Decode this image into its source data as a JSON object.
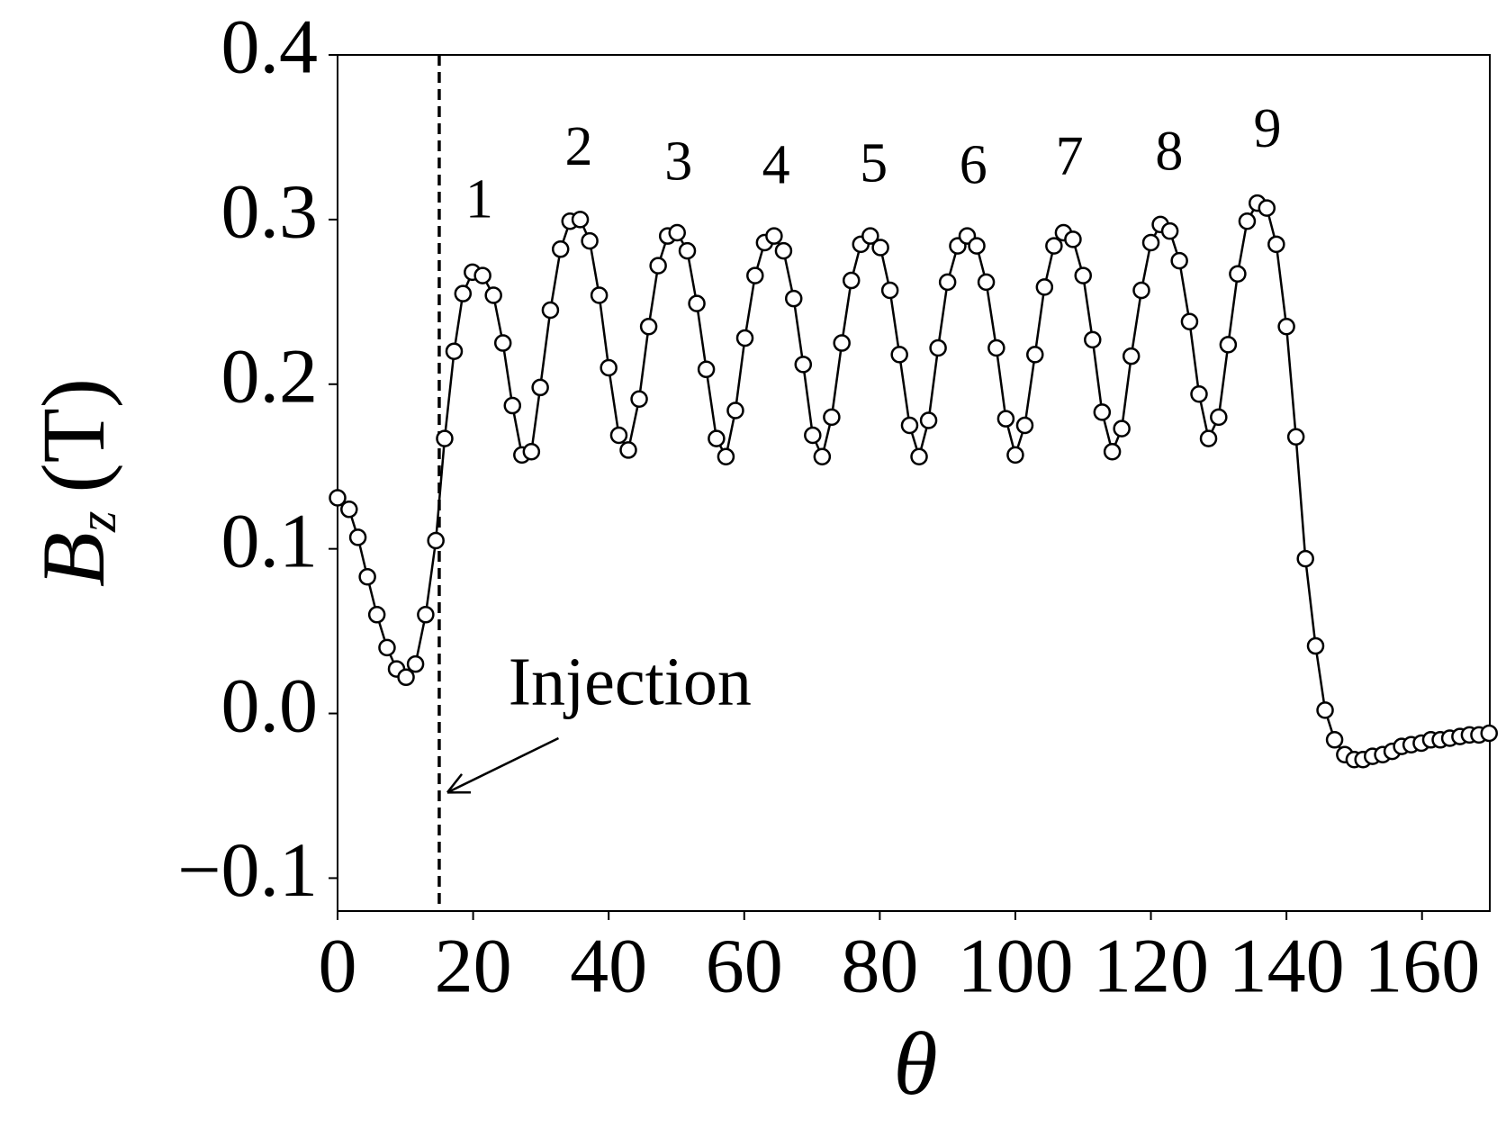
{
  "chart_data": {
    "type": "line",
    "xlabel": "θ",
    "ylabel": {
      "symbol": "B",
      "subscript": "z",
      "unit": "(T)"
    },
    "x": [
      0,
      1.7,
      3.0,
      4.4,
      5.8,
      7.3,
      8.7,
      10.1,
      11.5,
      13.0,
      14.5,
      15.8,
      17.2,
      18.5,
      19.9,
      21.4,
      23.0,
      24.4,
      25.8,
      27.2,
      28.6,
      29.9,
      31.4,
      32.9,
      34.3,
      35.8,
      37.2,
      38.6,
      40.0,
      41.5,
      42.9,
      44.5,
      45.9,
      47.3,
      48.7,
      50.1,
      51.6,
      53.0,
      54.4,
      55.9,
      57.3,
      58.7,
      60.1,
      61.6,
      63.0,
      64.4,
      65.8,
      67.3,
      68.7,
      70.1,
      71.5,
      72.9,
      74.4,
      75.8,
      77.2,
      78.6,
      80.1,
      81.5,
      82.9,
      84.4,
      85.8,
      87.2,
      88.6,
      90.0,
      91.5,
      92.9,
      94.3,
      95.7,
      97.2,
      98.6,
      100.0,
      101.4,
      102.9,
      104.3,
      105.7,
      107.1,
      108.5,
      110.0,
      111.4,
      112.8,
      114.3,
      115.7,
      117.1,
      118.6,
      120.0,
      121.4,
      122.8,
      124.2,
      125.7,
      127.1,
      128.5,
      130.0,
      131.4,
      132.8,
      134.2,
      135.7,
      137.1,
      138.5,
      140.0,
      141.4,
      142.8,
      144.3,
      145.7,
      147.1,
      148.6,
      150.0,
      151.3,
      152.7,
      154.2,
      155.6,
      157.0,
      158.4,
      159.9,
      161.3,
      162.7,
      164.1,
      165.6,
      167.0,
      168.4,
      169.9
    ],
    "values": [
      0.131,
      0.124,
      0.107,
      0.083,
      0.06,
      0.04,
      0.027,
      0.022,
      0.03,
      0.06,
      0.105,
      0.167,
      0.22,
      0.255,
      0.268,
      0.266,
      0.254,
      0.225,
      0.187,
      0.157,
      0.159,
      0.198,
      0.245,
      0.282,
      0.299,
      0.3,
      0.287,
      0.254,
      0.21,
      0.169,
      0.16,
      0.191,
      0.235,
      0.272,
      0.29,
      0.292,
      0.281,
      0.249,
      0.209,
      0.167,
      0.156,
      0.184,
      0.228,
      0.266,
      0.286,
      0.29,
      0.281,
      0.252,
      0.212,
      0.169,
      0.156,
      0.18,
      0.225,
      0.263,
      0.285,
      0.29,
      0.283,
      0.257,
      0.218,
      0.175,
      0.156,
      0.178,
      0.222,
      0.262,
      0.284,
      0.29,
      0.284,
      0.262,
      0.222,
      0.179,
      0.157,
      0.175,
      0.218,
      0.259,
      0.284,
      0.292,
      0.288,
      0.266,
      0.227,
      0.183,
      0.159,
      0.173,
      0.217,
      0.257,
      0.286,
      0.297,
      0.293,
      0.275,
      0.238,
      0.194,
      0.167,
      0.18,
      0.224,
      0.267,
      0.299,
      0.31,
      0.307,
      0.285,
      0.235,
      0.168,
      0.094,
      0.041,
      0.002,
      -0.016,
      -0.025,
      -0.028,
      -0.028,
      -0.026,
      -0.025,
      -0.023,
      -0.02,
      -0.019,
      -0.018,
      -0.016,
      -0.016,
      -0.015,
      -0.014,
      -0.013,
      -0.013,
      -0.012
    ],
    "color": "#000000",
    "marker_fill": "#ffffff",
    "xlim": [
      0,
      170
    ],
    "xticks": [
      0,
      20,
      40,
      60,
      80,
      100,
      120,
      140,
      160
    ],
    "ylim": [
      -0.12,
      0.4
    ],
    "yticks": [
      {
        "value": -0.1,
        "label": "−0.1"
      },
      {
        "value": 0,
        "label": "0.0"
      },
      0.1,
      0.2,
      0.3,
      0.4
    ],
    "vline": 15,
    "peak_labels": [
      {
        "text": "1",
        "x": 20.9,
        "y": 0.309
      },
      {
        "text": "2",
        "x": 35.6,
        "y": 0.341
      },
      {
        "text": "3",
        "x": 50.3,
        "y": 0.332
      },
      {
        "text": "4",
        "x": 64.7,
        "y": 0.33
      },
      {
        "text": "5",
        "x": 79.1,
        "y": 0.331
      },
      {
        "text": "6",
        "x": 93.8,
        "y": 0.33
      },
      {
        "text": "7",
        "x": 108.0,
        "y": 0.335
      },
      {
        "text": "8",
        "x": 122.7,
        "y": 0.338
      },
      {
        "text": "9",
        "x": 137.2,
        "y": 0.352
      }
    ],
    "annotation": {
      "text": "Injection",
      "x": 25.2,
      "y": 0.015,
      "arrow_from": [
        32.6,
        -0.015
      ],
      "arrow_to": [
        16.2,
        -0.048
      ]
    }
  }
}
